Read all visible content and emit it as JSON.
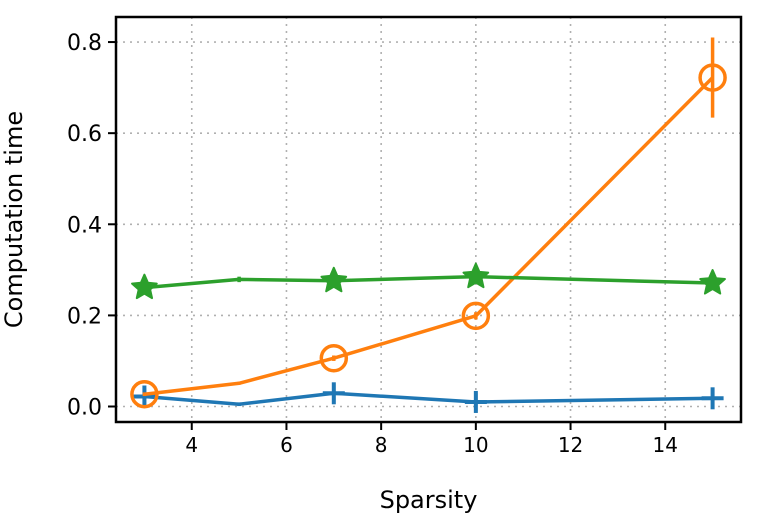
{
  "chart_data": {
    "type": "line",
    "title": "",
    "xlabel": "Sparsity",
    "ylabel": "Computation time",
    "xlim": [
      2.4,
      15.6
    ],
    "ylim": [
      -0.034,
      0.855
    ],
    "xticks": [
      4,
      6,
      8,
      10,
      12,
      14
    ],
    "yticks": [
      0.0,
      0.2,
      0.4,
      0.6,
      0.8
    ],
    "xtick_labels": [
      "4",
      "6",
      "8",
      "10",
      "12",
      "14"
    ],
    "ytick_labels": [
      "0.0",
      "0.2",
      "0.4",
      "0.6",
      "0.8"
    ],
    "grid": true,
    "legend": "none",
    "x": [
      3,
      5,
      7,
      10,
      15
    ],
    "series": [
      {
        "color": "#1f77b4",
        "marker": "plus",
        "values": [
          0.022,
          0.005,
          0.029,
          0.01,
          0.018
        ],
        "errors": [
          0.018,
          0.004,
          0.02,
          0.02,
          0.004
        ]
      },
      {
        "color": "#ff7f0e",
        "marker": "circle",
        "values": [
          0.027,
          0.051,
          0.106,
          0.199,
          0.722
        ],
        "errors": [
          0.004,
          0.003,
          0.006,
          0.008,
          0.088
        ]
      },
      {
        "color": "#2ca02c",
        "marker": "star",
        "values": [
          0.261,
          0.279,
          0.276,
          0.285,
          0.271
        ],
        "errors": [
          0.01,
          0.006,
          0.01,
          0.01,
          0.01
        ]
      }
    ],
    "markers_at": [
      3,
      7,
      10,
      15
    ]
  }
}
